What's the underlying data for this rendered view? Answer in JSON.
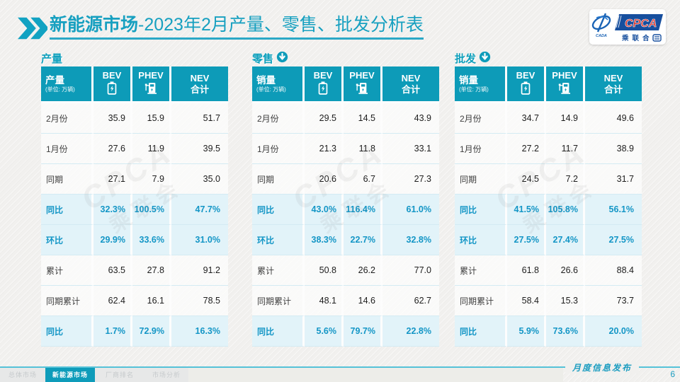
{
  "header": {
    "title_bold": "新能源市场",
    "title_rest": "-2023年2月产量、零售、批发分析表",
    "logo": {
      "cpca": "CPCA",
      "sub": "乘联合",
      "emblem_text": "CADA"
    }
  },
  "unit_note": "(单位: 万辆)",
  "columns": {
    "bev": "BEV",
    "phev": "PHEV",
    "nev_line1": "NEV",
    "nev_line2": "合计"
  },
  "watermark": {
    "line1": "CPCA",
    "line2": "乘联会"
  },
  "tables": [
    {
      "section": "产量",
      "has_arrow": false,
      "label_header": "产量",
      "rows": [
        {
          "label": "2月份",
          "values": [
            "35.9",
            "15.9",
            "51.7"
          ],
          "highlight": false
        },
        {
          "label": "1月份",
          "values": [
            "27.6",
            "11.9",
            "39.5"
          ],
          "highlight": false
        },
        {
          "label": "同期",
          "values": [
            "27.1",
            "7.9",
            "35.0"
          ],
          "highlight": false
        },
        {
          "label": "同比",
          "values": [
            "32.3%",
            "100.5%",
            "47.7%"
          ],
          "highlight": true
        },
        {
          "label": "环比",
          "values": [
            "29.9%",
            "33.6%",
            "31.0%"
          ],
          "highlight": true
        },
        {
          "label": "累计",
          "values": [
            "63.5",
            "27.8",
            "91.2"
          ],
          "highlight": false
        },
        {
          "label": "同期累计",
          "values": [
            "62.4",
            "16.1",
            "78.5"
          ],
          "highlight": false
        },
        {
          "label": "同比",
          "values": [
            "1.7%",
            "72.9%",
            "16.3%"
          ],
          "highlight": true
        }
      ]
    },
    {
      "section": "零售",
      "has_arrow": true,
      "label_header": "销量",
      "rows": [
        {
          "label": "2月份",
          "values": [
            "29.5",
            "14.5",
            "43.9"
          ],
          "highlight": false
        },
        {
          "label": "1月份",
          "values": [
            "21.3",
            "11.8",
            "33.1"
          ],
          "highlight": false
        },
        {
          "label": "同期",
          "values": [
            "20.6",
            "6.7",
            "27.3"
          ],
          "highlight": false
        },
        {
          "label": "同比",
          "values": [
            "43.0%",
            "116.4%",
            "61.0%"
          ],
          "highlight": true
        },
        {
          "label": "环比",
          "values": [
            "38.3%",
            "22.7%",
            "32.8%"
          ],
          "highlight": true
        },
        {
          "label": "累计",
          "values": [
            "50.8",
            "26.2",
            "77.0"
          ],
          "highlight": false
        },
        {
          "label": "同期累计",
          "values": [
            "48.1",
            "14.6",
            "62.7"
          ],
          "highlight": false
        },
        {
          "label": "同比",
          "values": [
            "5.6%",
            "79.7%",
            "22.8%"
          ],
          "highlight": true
        }
      ]
    },
    {
      "section": "批发",
      "has_arrow": true,
      "label_header": "销量",
      "rows": [
        {
          "label": "2月份",
          "values": [
            "34.7",
            "14.9",
            "49.6"
          ],
          "highlight": false
        },
        {
          "label": "1月份",
          "values": [
            "27.2",
            "11.7",
            "38.9"
          ],
          "highlight": false
        },
        {
          "label": "同期",
          "values": [
            "24.5",
            "7.2",
            "31.7"
          ],
          "highlight": false
        },
        {
          "label": "同比",
          "values": [
            "41.5%",
            "105.8%",
            "56.1%"
          ],
          "highlight": true
        },
        {
          "label": "环比",
          "values": [
            "27.5%",
            "27.4%",
            "27.5%"
          ],
          "highlight": true
        },
        {
          "label": "累计",
          "values": [
            "61.8",
            "26.6",
            "88.4"
          ],
          "highlight": false
        },
        {
          "label": "同期累计",
          "values": [
            "58.4",
            "15.3",
            "73.7"
          ],
          "highlight": false
        },
        {
          "label": "同比",
          "values": [
            "5.9%",
            "73.6%",
            "20.0%"
          ],
          "highlight": true
        }
      ]
    }
  ],
  "footer": {
    "tabs": [
      {
        "label": "总体市场",
        "active": false
      },
      {
        "label": "新能源市场",
        "active": true
      },
      {
        "label": "厂商排名",
        "active": false
      },
      {
        "label": "市场分析",
        "active": false
      }
    ],
    "publication": "月度信息发布",
    "page": "6"
  },
  "colors": {
    "teal": "#0d9bb8",
    "highlight_bg": "#e2f3f9",
    "accent_text": "#1496c6",
    "line": "#55c2d8"
  }
}
